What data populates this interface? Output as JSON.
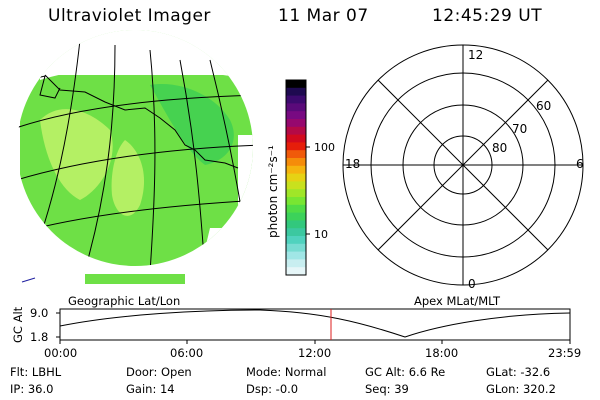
{
  "header": {
    "title": "Ultraviolet Imager",
    "date": "11 Mar 07",
    "time": "12:45:29 UT"
  },
  "colorbar": {
    "unit_label": "photon cm⁻²s⁻¹",
    "tick_labels": [
      "100",
      "10"
    ],
    "colors": [
      "#000000",
      "#1e0a50",
      "#3c0a6e",
      "#5a0a7a",
      "#780a82",
      "#96086e",
      "#b40a46",
      "#d20a1e",
      "#e61e0a",
      "#f05a0a",
      "#f58c0a",
      "#f5b40f",
      "#e6d214",
      "#c8e11e",
      "#a0e628",
      "#78e632",
      "#50dc46",
      "#3cd25a",
      "#32c87d",
      "#3cc8a0",
      "#50d2be",
      "#78dcd2",
      "#a0e6e6",
      "#c8eef0",
      "#e6f6f8"
    ]
  },
  "geo_panel": {
    "label": "Geographic Lat/Lon",
    "aurora_color": "#6ee046",
    "aurora_light": "#b4f064",
    "aurora_mid": "#46d250"
  },
  "polar_panel": {
    "label": "Apex MLat/MLT",
    "mlt_labels": [
      "12",
      "18",
      "6",
      "0"
    ],
    "lat_labels": [
      "60",
      "70",
      "80"
    ]
  },
  "timeline": {
    "ylabel": "GC Alt",
    "y_ticks": [
      "9.0",
      "1.8"
    ],
    "x_ticks": [
      "00:00",
      "06:00",
      "12:00",
      "18:00",
      "23:59"
    ],
    "marker_color": "#dc1e1e"
  },
  "info": {
    "flt": "Flt: LBHL",
    "ip": "IP: 36.0",
    "door": "Door: Open",
    "gain": "Gain: 14",
    "mode": "Mode: Normal",
    "dsp": "Dsp:    -0.0",
    "gcalt": "GC Alt: 6.6 Re",
    "seq": "Seq: 39",
    "glat": "GLat: -32.6",
    "glon": "GLon: 320.2"
  }
}
